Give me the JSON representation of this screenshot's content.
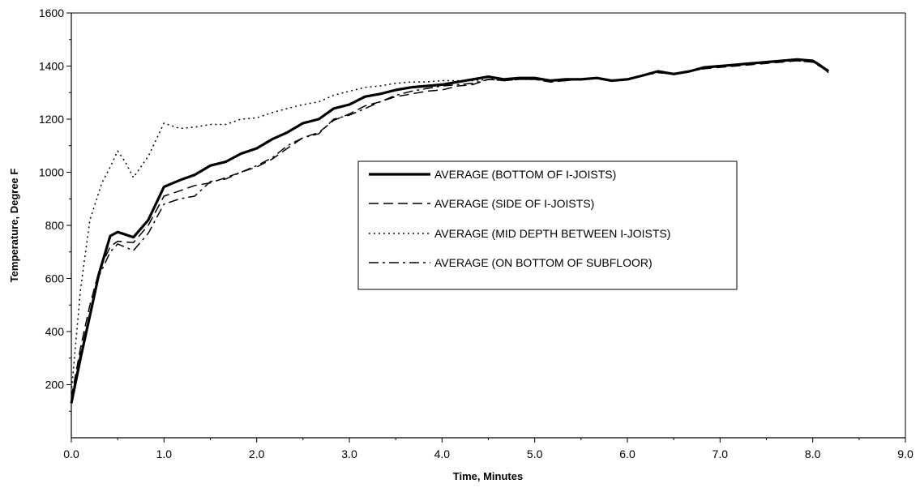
{
  "chart_data": {
    "type": "line",
    "title": "",
    "xlabel": "Time, Minutes",
    "ylabel": "Temperature, Degree F",
    "xlim": [
      0,
      9
    ],
    "ylim": [
      0,
      1600
    ],
    "x_ticks": [
      "0.0",
      "1.0",
      "2.0",
      "3.0",
      "4.0",
      "5.0",
      "6.0",
      "7.0",
      "8.0",
      "9.0"
    ],
    "y_ticks": [
      "200",
      "400",
      "600",
      "800",
      "1000",
      "1200",
      "1400",
      "1600"
    ],
    "grid": false,
    "legend_position": "center-right",
    "series": [
      {
        "name": "AVERAGE (BOTTOM OF I-JOISTS)",
        "style": "solid-thick",
        "points": [
          [
            0.0,
            130
          ],
          [
            0.1,
            300
          ],
          [
            0.2,
            460
          ],
          [
            0.3,
            620
          ],
          [
            0.42,
            760
          ],
          [
            0.5,
            775
          ],
          [
            0.67,
            755
          ],
          [
            0.83,
            820
          ],
          [
            1.0,
            945
          ],
          [
            1.17,
            970
          ],
          [
            1.33,
            990
          ],
          [
            1.5,
            1025
          ],
          [
            1.67,
            1040
          ],
          [
            1.83,
            1070
          ],
          [
            2.0,
            1090
          ],
          [
            2.17,
            1125
          ],
          [
            2.33,
            1150
          ],
          [
            2.5,
            1185
          ],
          [
            2.67,
            1200
          ],
          [
            2.83,
            1240
          ],
          [
            3.0,
            1255
          ],
          [
            3.17,
            1285
          ],
          [
            3.33,
            1295
          ],
          [
            3.5,
            1310
          ],
          [
            3.67,
            1320
          ],
          [
            3.83,
            1325
          ],
          [
            4.0,
            1330
          ],
          [
            4.17,
            1340
          ],
          [
            4.33,
            1350
          ],
          [
            4.5,
            1360
          ],
          [
            4.67,
            1350
          ],
          [
            4.83,
            1355
          ],
          [
            5.0,
            1355
          ],
          [
            5.17,
            1345
          ],
          [
            5.33,
            1350
          ],
          [
            5.5,
            1350
          ],
          [
            5.67,
            1355
          ],
          [
            5.83,
            1345
          ],
          [
            6.0,
            1350
          ],
          [
            6.17,
            1365
          ],
          [
            6.33,
            1380
          ],
          [
            6.5,
            1370
          ],
          [
            6.67,
            1380
          ],
          [
            6.83,
            1395
          ],
          [
            7.0,
            1400
          ],
          [
            7.17,
            1405
          ],
          [
            7.33,
            1410
          ],
          [
            7.5,
            1415
          ],
          [
            7.67,
            1420
          ],
          [
            7.83,
            1425
          ],
          [
            8.0,
            1420
          ],
          [
            8.07,
            1405
          ],
          [
            8.17,
            1380
          ]
        ]
      },
      {
        "name": "AVERAGE (SIDE OF I-JOISTS)",
        "style": "dashed",
        "points": [
          [
            0.0,
            150
          ],
          [
            0.1,
            340
          ],
          [
            0.2,
            500
          ],
          [
            0.3,
            630
          ],
          [
            0.42,
            720
          ],
          [
            0.5,
            740
          ],
          [
            0.67,
            735
          ],
          [
            0.83,
            800
          ],
          [
            1.0,
            910
          ],
          [
            1.17,
            930
          ],
          [
            1.33,
            950
          ],
          [
            1.5,
            960
          ],
          [
            1.67,
            980
          ],
          [
            1.83,
            1000
          ],
          [
            2.0,
            1020
          ],
          [
            2.17,
            1050
          ],
          [
            2.33,
            1090
          ],
          [
            2.5,
            1130
          ],
          [
            2.67,
            1150
          ],
          [
            2.83,
            1195
          ],
          [
            3.0,
            1220
          ],
          [
            3.17,
            1250
          ],
          [
            3.33,
            1265
          ],
          [
            3.5,
            1285
          ],
          [
            3.67,
            1295
          ],
          [
            3.83,
            1305
          ],
          [
            4.0,
            1310
          ],
          [
            4.17,
            1325
          ],
          [
            4.33,
            1330
          ],
          [
            4.5,
            1350
          ],
          [
            4.67,
            1345
          ],
          [
            4.83,
            1350
          ],
          [
            5.0,
            1350
          ],
          [
            5.17,
            1340
          ],
          [
            5.33,
            1345
          ],
          [
            5.5,
            1350
          ],
          [
            5.67,
            1355
          ],
          [
            5.83,
            1345
          ],
          [
            6.0,
            1350
          ],
          [
            6.17,
            1365
          ],
          [
            6.33,
            1375
          ],
          [
            6.5,
            1370
          ],
          [
            6.67,
            1380
          ],
          [
            6.83,
            1390
          ],
          [
            7.0,
            1395
          ],
          [
            7.17,
            1400
          ],
          [
            7.33,
            1405
          ],
          [
            7.5,
            1410
          ],
          [
            7.67,
            1415
          ],
          [
            7.83,
            1420
          ],
          [
            8.0,
            1415
          ],
          [
            8.07,
            1400
          ],
          [
            8.17,
            1380
          ]
        ]
      },
      {
        "name": "AVERAGE (MID DEPTH BETWEEN I-JOISTS)",
        "style": "dotted",
        "points": [
          [
            0.0,
            170
          ],
          [
            0.1,
            560
          ],
          [
            0.2,
            820
          ],
          [
            0.33,
            960
          ],
          [
            0.42,
            1020
          ],
          [
            0.5,
            1080
          ],
          [
            0.58,
            1040
          ],
          [
            0.67,
            980
          ],
          [
            0.83,
            1060
          ],
          [
            1.0,
            1185
          ],
          [
            1.17,
            1165
          ],
          [
            1.33,
            1170
          ],
          [
            1.5,
            1180
          ],
          [
            1.67,
            1180
          ],
          [
            1.83,
            1200
          ],
          [
            2.0,
            1205
          ],
          [
            2.17,
            1225
          ],
          [
            2.33,
            1240
          ],
          [
            2.5,
            1255
          ],
          [
            2.67,
            1265
          ],
          [
            2.83,
            1290
          ],
          [
            3.0,
            1305
          ],
          [
            3.17,
            1320
          ],
          [
            3.33,
            1325
          ],
          [
            3.5,
            1335
          ],
          [
            3.67,
            1340
          ],
          [
            3.83,
            1340
          ],
          [
            4.0,
            1345
          ],
          [
            4.17,
            1345
          ],
          [
            4.33,
            1345
          ],
          [
            4.5,
            1350
          ],
          [
            4.67,
            1350
          ],
          [
            4.83,
            1350
          ],
          [
            5.0,
            1350
          ],
          [
            5.17,
            1345
          ],
          [
            5.33,
            1350
          ],
          [
            5.5,
            1350
          ],
          [
            5.67,
            1355
          ],
          [
            5.83,
            1345
          ],
          [
            6.0,
            1350
          ],
          [
            6.17,
            1365
          ],
          [
            6.33,
            1380
          ],
          [
            6.5,
            1370
          ],
          [
            6.67,
            1380
          ],
          [
            6.83,
            1395
          ],
          [
            7.0,
            1400
          ],
          [
            7.17,
            1405
          ],
          [
            7.33,
            1410
          ],
          [
            7.5,
            1415
          ],
          [
            7.67,
            1420
          ],
          [
            7.83,
            1425
          ],
          [
            8.0,
            1420
          ],
          [
            8.07,
            1405
          ],
          [
            8.17,
            1385
          ]
        ]
      },
      {
        "name": "AVERAGE (ON BOTTOM OF SUBFLOOR)",
        "style": "dash-dot",
        "points": [
          [
            0.0,
            140
          ],
          [
            0.1,
            320
          ],
          [
            0.2,
            470
          ],
          [
            0.3,
            610
          ],
          [
            0.42,
            700
          ],
          [
            0.5,
            730
          ],
          [
            0.67,
            705
          ],
          [
            0.83,
            770
          ],
          [
            1.0,
            880
          ],
          [
            1.17,
            900
          ],
          [
            1.33,
            910
          ],
          [
            1.5,
            965
          ],
          [
            1.67,
            975
          ],
          [
            1.83,
            1000
          ],
          [
            2.0,
            1025
          ],
          [
            2.17,
            1055
          ],
          [
            2.33,
            1100
          ],
          [
            2.5,
            1130
          ],
          [
            2.67,
            1145
          ],
          [
            2.83,
            1200
          ],
          [
            3.0,
            1215
          ],
          [
            3.17,
            1240
          ],
          [
            3.33,
            1265
          ],
          [
            3.5,
            1290
          ],
          [
            3.67,
            1305
          ],
          [
            3.83,
            1315
          ],
          [
            4.0,
            1325
          ],
          [
            4.17,
            1330
          ],
          [
            4.33,
            1335
          ],
          [
            4.5,
            1350
          ],
          [
            4.67,
            1345
          ],
          [
            4.83,
            1350
          ],
          [
            5.0,
            1350
          ],
          [
            5.17,
            1340
          ],
          [
            5.33,
            1345
          ],
          [
            5.5,
            1350
          ],
          [
            5.67,
            1355
          ],
          [
            5.83,
            1345
          ],
          [
            6.0,
            1350
          ],
          [
            6.17,
            1365
          ],
          [
            6.33,
            1375
          ],
          [
            6.5,
            1370
          ],
          [
            6.67,
            1380
          ],
          [
            6.83,
            1390
          ],
          [
            7.0,
            1400
          ],
          [
            7.17,
            1405
          ],
          [
            7.33,
            1410
          ],
          [
            7.5,
            1415
          ],
          [
            7.67,
            1420
          ],
          [
            7.83,
            1420
          ],
          [
            8.0,
            1415
          ],
          [
            8.07,
            1405
          ],
          [
            8.17,
            1375
          ]
        ]
      }
    ]
  }
}
